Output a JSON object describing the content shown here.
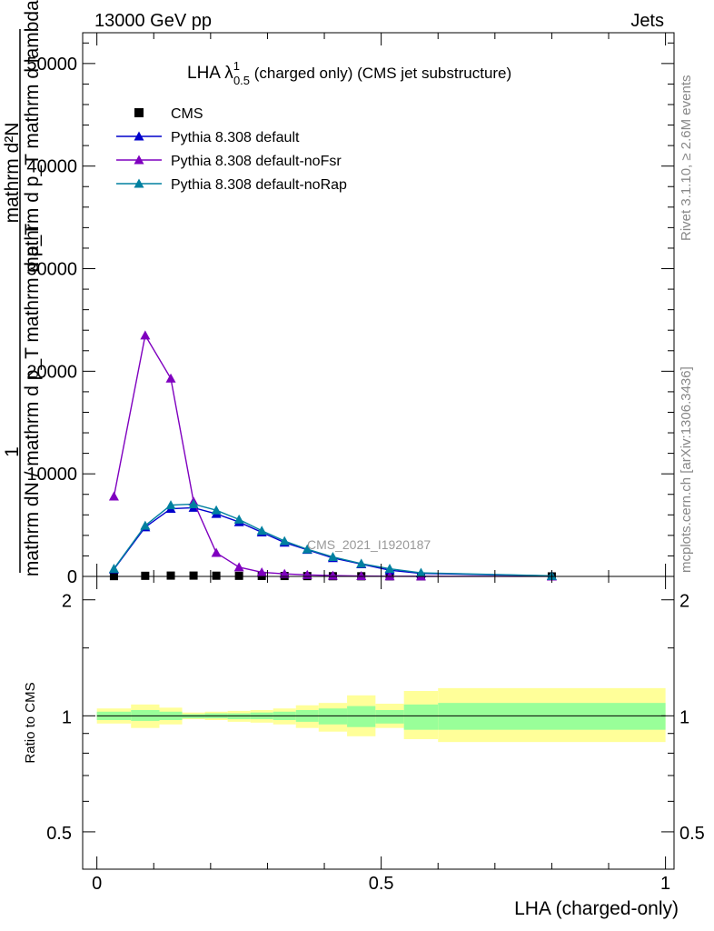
{
  "header": {
    "left": "13000 GeV pp",
    "right": "Jets"
  },
  "side_labels": {
    "rivet": "Rivet 3.1.10, ≥ 2.6M events",
    "mcplots": "mcplots.cern.ch [arXiv:1306.3436]"
  },
  "watermark": "CMS_2021_I1920187",
  "top_panel": {
    "title_main": "LHA λ",
    "title_sup": "1",
    "title_sub": "0.5",
    "title_rest": " (charged only) (CMS jet substructure)",
    "ylabel_top": "1",
    "ylabel_l1": "mathrm d²N",
    "ylabel_l2": "mathrm d p_T mathrm d lambda",
    "ylabel_l3": "mathrm dN / mathrm d p_T mathrm d p_T",
    "yticks": [
      0,
      10000,
      20000,
      30000,
      40000,
      50000
    ],
    "ytick_labels": [
      "0",
      "10000",
      "20000",
      "30000",
      "40000",
      "50000"
    ]
  },
  "ratio_panel": {
    "ylabel": "Ratio to CMS",
    "yticks": [
      0.5,
      1,
      2
    ],
    "ytick_labels": [
      "0.5",
      "1",
      "2"
    ]
  },
  "xaxis": {
    "label": "LHA (charged-only)",
    "ticks": [
      0,
      0.5,
      1
    ],
    "tick_labels": [
      "0",
      "0.5",
      "1"
    ]
  },
  "colors": {
    "cms": "#000000",
    "default": "#0000cc",
    "noFsr": "#7f00bf",
    "noRap": "#0080a0",
    "band_inner": "#99ff99",
    "band_outer": "#ffff99"
  },
  "chart_data": {
    "type": "line",
    "xlim": [
      -0.025,
      1.015
    ],
    "ylim": [
      0,
      53000
    ],
    "ratio_ylim": [
      0.4,
      2.3
    ],
    "legend_placement": "top-left",
    "x": [
      0.03,
      0.085,
      0.13,
      0.17,
      0.21,
      0.25,
      0.29,
      0.33,
      0.37,
      0.415,
      0.465,
      0.515,
      0.57,
      0.8
    ],
    "series": [
      {
        "name": "CMS",
        "marker": "square",
        "values": [
          30,
          60,
          80,
          80,
          70,
          60,
          50,
          40,
          30,
          20,
          15,
          10,
          5,
          2
        ]
      },
      {
        "name": "Pythia 8.308 default",
        "marker": "triangle",
        "values": [
          700,
          4800,
          6600,
          6700,
          6100,
          5300,
          4300,
          3300,
          2600,
          1800,
          1200,
          600,
          300,
          50
        ]
      },
      {
        "name": "Pythia 8.308 default-noFsr",
        "marker": "triangle",
        "values": [
          7800,
          23500,
          19300,
          7300,
          2300,
          900,
          400,
          250,
          150,
          80,
          40,
          20,
          10,
          2
        ]
      },
      {
        "name": "Pythia 8.308 default-noRap",
        "marker": "triangle",
        "values": [
          750,
          4950,
          6950,
          7050,
          6450,
          5550,
          4450,
          3450,
          2650,
          1900,
          1250,
          750,
          350,
          60
        ]
      }
    ],
    "ratio_bands": [
      {
        "x0": 0.0,
        "x1": 0.06,
        "inner": [
          0.975,
          1.025
        ],
        "outer": [
          0.955,
          1.045
        ]
      },
      {
        "x0": 0.06,
        "x1": 0.11,
        "inner": [
          0.97,
          1.035
        ],
        "outer": [
          0.93,
          1.07
        ]
      },
      {
        "x0": 0.11,
        "x1": 0.15,
        "inner": [
          0.975,
          1.025
        ],
        "outer": [
          0.95,
          1.05
        ]
      },
      {
        "x0": 0.15,
        "x1": 0.19,
        "inner": [
          0.985,
          1.01
        ],
        "outer": [
          0.98,
          1.02
        ]
      },
      {
        "x0": 0.19,
        "x1": 0.23,
        "inner": [
          0.985,
          1.015
        ],
        "outer": [
          0.975,
          1.025
        ]
      },
      {
        "x0": 0.23,
        "x1": 0.27,
        "inner": [
          0.98,
          1.015
        ],
        "outer": [
          0.965,
          1.03
        ]
      },
      {
        "x0": 0.27,
        "x1": 0.31,
        "inner": [
          0.98,
          1.02
        ],
        "outer": [
          0.96,
          1.035
        ]
      },
      {
        "x0": 0.31,
        "x1": 0.35,
        "inner": [
          0.975,
          1.025
        ],
        "outer": [
          0.95,
          1.045
        ]
      },
      {
        "x0": 0.35,
        "x1": 0.39,
        "inner": [
          0.965,
          1.035
        ],
        "outer": [
          0.93,
          1.065
        ]
      },
      {
        "x0": 0.39,
        "x1": 0.44,
        "inner": [
          0.95,
          1.045
        ],
        "outer": [
          0.91,
          1.08
        ]
      },
      {
        "x0": 0.44,
        "x1": 0.49,
        "inner": [
          0.935,
          1.06
        ],
        "outer": [
          0.885,
          1.13
        ]
      },
      {
        "x0": 0.49,
        "x1": 0.54,
        "inner": [
          0.955,
          1.035
        ],
        "outer": [
          0.93,
          1.075
        ]
      },
      {
        "x0": 0.54,
        "x1": 0.6,
        "inner": [
          0.92,
          1.07
        ],
        "outer": [
          0.87,
          1.16
        ]
      },
      {
        "x0": 0.6,
        "x1": 1.0,
        "inner": [
          0.92,
          1.08
        ],
        "outer": [
          0.855,
          1.18
        ]
      }
    ]
  }
}
